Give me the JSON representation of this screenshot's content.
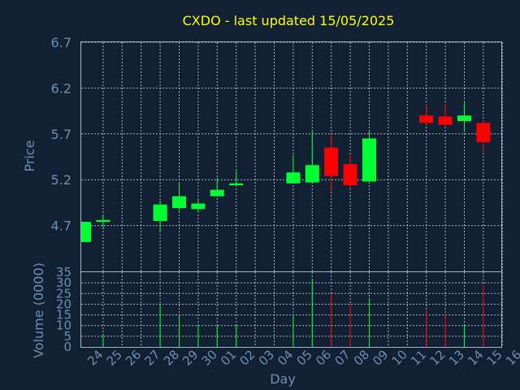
{
  "title": "CXDO - last updated 15/05/2025",
  "colors": {
    "background": "#112033",
    "title": "#ffff00",
    "axis_text": "#6f8fb2",
    "up": "#00ff33",
    "down": "#ff0000"
  },
  "chart_data": [
    {
      "type": "candlestick",
      "title": "CXDO - last updated 15/05/2025",
      "ylabel": "Price",
      "ylim": [
        4.2,
        6.7
      ],
      "yticks": [
        "4.7",
        "5.2",
        "5.7",
        "6.2",
        "6.7"
      ],
      "grid": true,
      "x": [
        "23",
        "24",
        "25",
        "26",
        "27",
        "28",
        "29",
        "30",
        "01",
        "02",
        "03",
        "04",
        "05",
        "06",
        "07",
        "08",
        "09",
        "10",
        "11",
        "12",
        "13",
        "14",
        "15",
        "16"
      ],
      "candles": [
        {
          "day": "23",
          "open": 4.52,
          "high": 4.74,
          "low": 4.52,
          "close": 4.74
        },
        {
          "day": "24",
          "open": 4.74,
          "high": 4.82,
          "low": 4.66,
          "close": 4.76
        },
        {
          "day": "27",
          "open": 4.75,
          "high": 4.97,
          "low": 4.63,
          "close": 4.93
        },
        {
          "day": "28",
          "open": 4.89,
          "high": 5.17,
          "low": 4.86,
          "close": 5.02
        },
        {
          "day": "29",
          "open": 4.88,
          "high": 4.98,
          "low": 4.84,
          "close": 4.94
        },
        {
          "day": "30",
          "open": 5.02,
          "high": 5.22,
          "low": 5.02,
          "close": 5.09
        },
        {
          "day": "01",
          "open": 5.14,
          "high": 5.3,
          "low": 5.14,
          "close": 5.16
        },
        {
          "day": "04",
          "open": 5.16,
          "high": 5.47,
          "low": 5.16,
          "close": 5.28
        },
        {
          "day": "05",
          "open": 5.17,
          "high": 5.73,
          "low": 5.17,
          "close": 5.36
        },
        {
          "day": "06",
          "open": 5.55,
          "high": 5.7,
          "low": 5.07,
          "close": 5.24
        },
        {
          "day": "07",
          "open": 5.37,
          "high": 5.47,
          "low": 5.1,
          "close": 5.14
        },
        {
          "day": "08",
          "open": 5.18,
          "high": 5.73,
          "low": 5.18,
          "close": 5.65
        },
        {
          "day": "11",
          "open": 5.9,
          "high": 6.03,
          "low": 5.8,
          "close": 5.82
        },
        {
          "day": "12",
          "open": 5.89,
          "high": 6.04,
          "low": 5.78,
          "close": 5.8
        },
        {
          "day": "13",
          "open": 5.84,
          "high": 6.06,
          "low": 5.72,
          "close": 5.9
        },
        {
          "day": "14",
          "open": 5.82,
          "high": 5.85,
          "low": 5.52,
          "close": 5.61
        }
      ]
    },
    {
      "type": "bar",
      "xlabel": "Day",
      "ylabel": "Volume (0000)",
      "ylim": [
        0,
        35
      ],
      "yticks": [
        "0",
        "5",
        "10",
        "15",
        "20",
        "25",
        "30",
        "35"
      ],
      "grid": true,
      "xticklabels": [
        "24",
        "25",
        "26",
        "27",
        "28",
        "29",
        "30",
        "01",
        "02",
        "03",
        "04",
        "05",
        "06",
        "07",
        "08",
        "09",
        "10",
        "11",
        "12",
        "13",
        "14",
        "15",
        "16"
      ],
      "bars": [
        {
          "day": "24",
          "value": 6,
          "direction": "up"
        },
        {
          "day": "27",
          "value": 20,
          "direction": "up"
        },
        {
          "day": "28",
          "value": 15,
          "direction": "up"
        },
        {
          "day": "29",
          "value": 10,
          "direction": "up"
        },
        {
          "day": "30",
          "value": 10,
          "direction": "up"
        },
        {
          "day": "01",
          "value": 10,
          "direction": "up"
        },
        {
          "day": "04",
          "value": 15,
          "direction": "up"
        },
        {
          "day": "05",
          "value": 32,
          "direction": "up"
        },
        {
          "day": "06",
          "value": 25,
          "direction": "down"
        },
        {
          "day": "07",
          "value": 20,
          "direction": "down"
        },
        {
          "day": "08",
          "value": 23,
          "direction": "up"
        },
        {
          "day": "11",
          "value": 17,
          "direction": "down"
        },
        {
          "day": "12",
          "value": 15,
          "direction": "down"
        },
        {
          "day": "13",
          "value": 10,
          "direction": "up"
        },
        {
          "day": "14",
          "value": 29,
          "direction": "down"
        }
      ]
    }
  ]
}
